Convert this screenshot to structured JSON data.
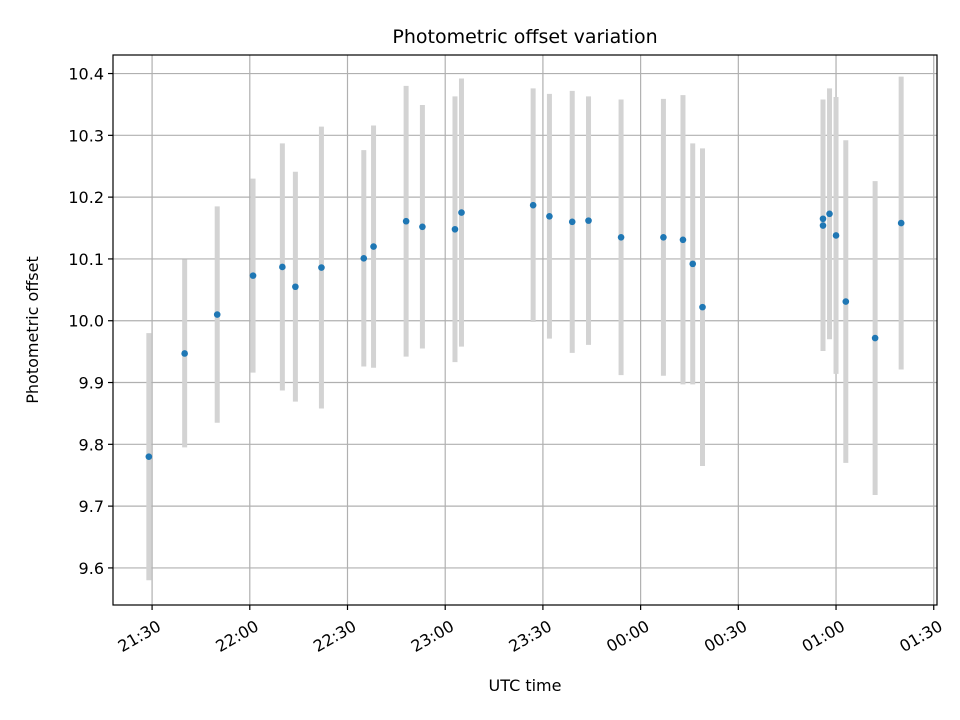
{
  "chart_data": {
    "type": "scatter",
    "title": "Photometric offset variation",
    "xlabel": "UTC time",
    "ylabel": "Photometric offset",
    "x_type": "time",
    "grid": true,
    "xticks": [
      "21:30",
      "22:00",
      "22:30",
      "23:00",
      "23:30",
      "00:00",
      "00:30",
      "01:00",
      "01:30"
    ],
    "yticks": [
      "9.6",
      "9.7",
      "9.8",
      "9.9",
      "10.0",
      "10.1",
      "10.2",
      "10.3",
      "10.4"
    ],
    "ylim": [
      9.54,
      10.43
    ],
    "xlim": [
      "21:18",
      "01:31"
    ],
    "colors": {
      "points": "#1f77b4",
      "errorbars": "#d3d3d3",
      "grid": "#b0b0b0"
    },
    "series": [
      {
        "x": [
          "21:29",
          "21:40",
          "21:50",
          "22:01",
          "22:10",
          "22:14",
          "22:22",
          "22:35",
          "22:38",
          "22:48",
          "22:53",
          "23:03",
          "23:05",
          "23:27",
          "23:32",
          "23:39",
          "23:44",
          "23:54",
          "00:07",
          "00:13",
          "00:16",
          "00:19",
          "00:56",
          "00:56",
          "00:58",
          "01:00",
          "01:03",
          "01:12",
          "01:20"
        ],
        "y": [
          9.78,
          9.947,
          10.01,
          10.073,
          10.087,
          10.055,
          10.086,
          10.101,
          10.12,
          10.161,
          10.152,
          10.148,
          10.175,
          10.187,
          10.169,
          10.16,
          10.162,
          10.135,
          10.135,
          10.131,
          10.092,
          10.022,
          10.165,
          10.154,
          10.173,
          10.138,
          10.031,
          9.972,
          10.158
        ],
        "err": [
          0.2,
          0.152,
          0.175,
          0.157,
          0.2,
          0.186,
          0.228,
          0.175,
          0.196,
          0.219,
          0.197,
          0.215,
          0.217,
          0.189,
          0.198,
          0.212,
          0.201,
          0.223,
          0.224,
          0.234,
          0.195,
          0.257,
          0.193,
          0.203,
          0.203,
          0.224,
          0.261,
          0.254,
          0.237
        ]
      }
    ]
  }
}
